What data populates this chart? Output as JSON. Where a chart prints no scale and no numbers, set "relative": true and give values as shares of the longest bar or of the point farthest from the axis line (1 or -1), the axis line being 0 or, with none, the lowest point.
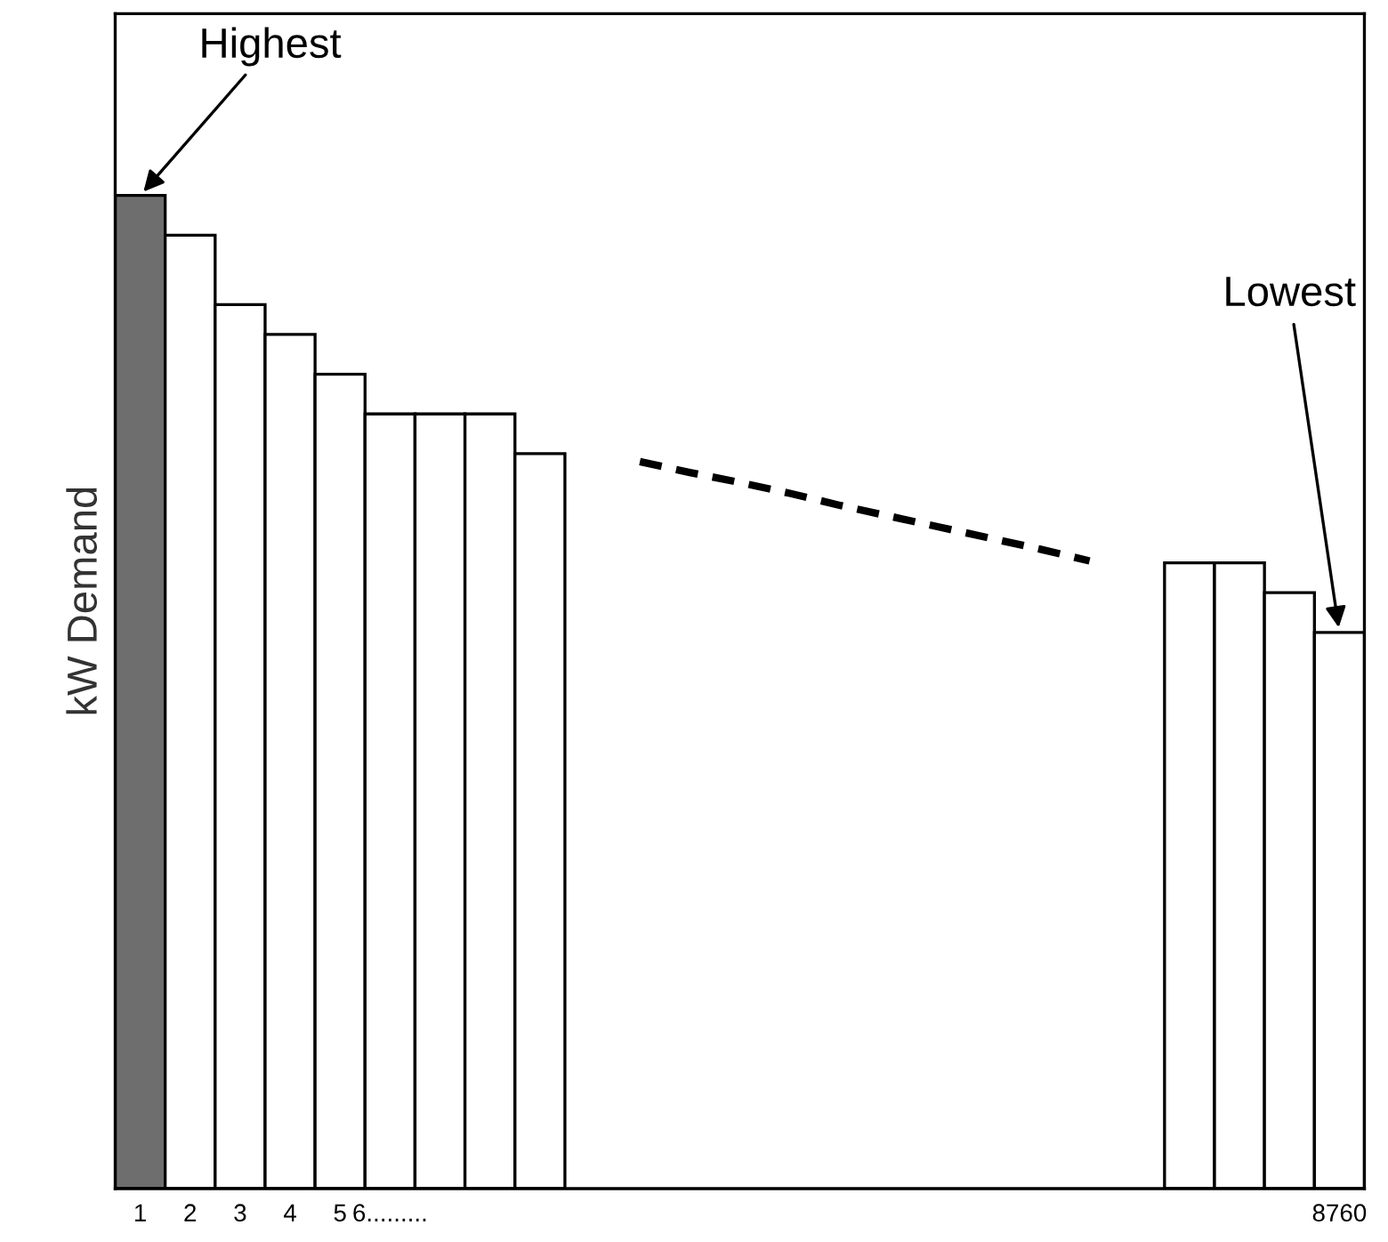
{
  "chart_data": {
    "type": "bar",
    "relative": true,
    "ylabel": "kW Demand",
    "categories": [
      "1",
      "2",
      "3",
      "4",
      "5",
      "6.........",
      null,
      null,
      null,
      null,
      null,
      null,
      null,
      null,
      null,
      null,
      null,
      null,
      null,
      null,
      null,
      null,
      null,
      null,
      "8760"
    ],
    "series": [
      {
        "color": "#ffffff",
        "colors": [
          "#6e6e6e",
          "#ffffff",
          "#ffffff",
          "#ffffff",
          "#ffffff",
          "#ffffff",
          "#ffffff",
          "#ffffff",
          "#ffffff",
          null,
          null,
          null,
          null,
          null,
          null,
          null,
          null,
          null,
          null,
          null,
          null,
          "#ffffff",
          "#ffffff",
          "#ffffff",
          "#ffffff"
        ],
        "values": [
          1,
          0.96,
          0.89,
          0.86,
          0.82,
          0.78,
          0.78,
          0.78,
          0.74,
          null,
          null,
          null,
          null,
          null,
          null,
          null,
          null,
          null,
          null,
          null,
          null,
          0.63,
          0.63,
          0.6,
          0.56
        ]
      },
      {
        "type": "line",
        "color": "#000000",
        "line_style": "dashed",
        "values": [
          null,
          null,
          null,
          null,
          null,
          null,
          null,
          null,
          null,
          null,
          0.732,
          0.721,
          0.711,
          0.7,
          0.688,
          0.677,
          0.666,
          0.655,
          0.644,
          0.632,
          null,
          null,
          null,
          null,
          null
        ]
      }
    ],
    "annotations": [
      {
        "text": "Highest",
        "x": "1",
        "y": 1
      },
      {
        "text": "Lowest",
        "x": "8760",
        "y": 0.56
      }
    ],
    "grid": false,
    "legend": false
  }
}
